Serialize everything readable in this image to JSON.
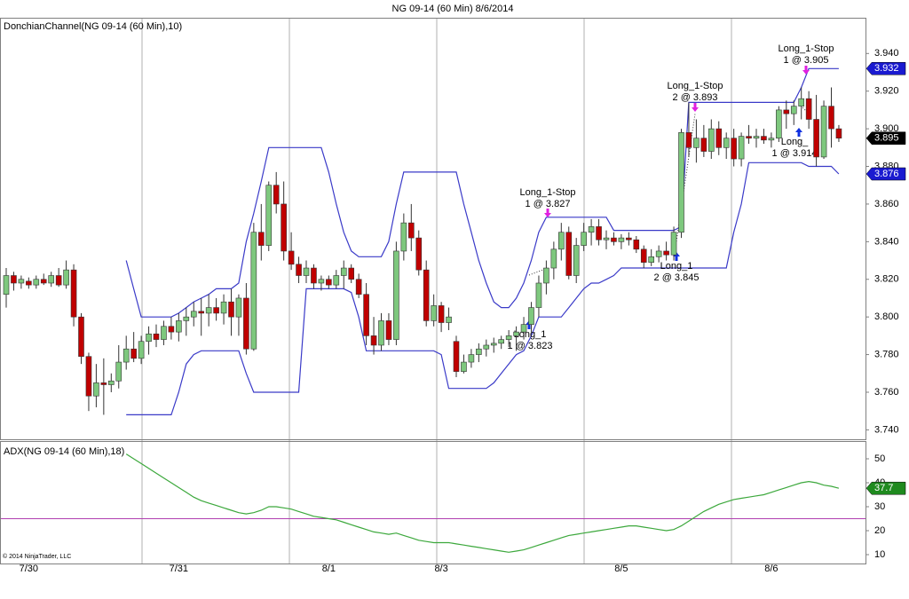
{
  "copyright": "© 2014 NinjaTrader, LLC",
  "chart_data": [
    {
      "type": "candlestick",
      "title": "NG 09-14 (60 Min)  8/6/2014",
      "subtitle": "DonchianChannel(NG 09-14 (60 Min),10)",
      "categories": [
        null,
        null,
        null,
        "7/30",
        null,
        null,
        null,
        null,
        null,
        null,
        null,
        null,
        null,
        null,
        null,
        null,
        null,
        null,
        null,
        null,
        null,
        null,
        null,
        "7/31",
        null,
        null,
        null,
        null,
        null,
        null,
        null,
        null,
        null,
        null,
        null,
        null,
        null,
        null,
        null,
        null,
        null,
        null,
        null,
        "8/1",
        null,
        null,
        null,
        null,
        null,
        null,
        null,
        null,
        null,
        null,
        null,
        null,
        null,
        null,
        "8/3",
        null,
        null,
        null,
        null,
        null,
        null,
        null,
        null,
        null,
        null,
        null,
        null,
        null,
        null,
        null,
        null,
        null,
        null,
        null,
        null,
        null,
        null,
        null,
        "8/5",
        null,
        null,
        null,
        null,
        null,
        null,
        null,
        null,
        null,
        null,
        null,
        null,
        null,
        null,
        null,
        null,
        null,
        null,
        null,
        "8/6",
        null,
        null,
        null,
        null,
        null,
        null,
        null,
        null,
        null
      ],
      "ohlc": [
        [
          3.812,
          3.826,
          3.805,
          3.822
        ],
        [
          3.822,
          3.824,
          3.814,
          3.818
        ],
        [
          3.818,
          3.822,
          3.815,
          3.82
        ],
        [
          3.819,
          3.821,
          3.815,
          3.817
        ],
        [
          3.817,
          3.822,
          3.815,
          3.82
        ],
        [
          3.82,
          3.823,
          3.817,
          3.818
        ],
        [
          3.818,
          3.824,
          3.816,
          3.822
        ],
        [
          3.822,
          3.826,
          3.816,
          3.817
        ],
        [
          3.817,
          3.83,
          3.815,
          3.825
        ],
        [
          3.825,
          3.828,
          3.795,
          3.8
        ],
        [
          3.8,
          3.802,
          3.775,
          3.779
        ],
        [
          3.779,
          3.781,
          3.75,
          3.758
        ],
        [
          3.758,
          3.775,
          3.752,
          3.765
        ],
        [
          3.765,
          3.778,
          3.748,
          3.764
        ],
        [
          3.764,
          3.77,
          3.76,
          3.766
        ],
        [
          3.766,
          3.785,
          3.762,
          3.776
        ],
        [
          3.776,
          3.79,
          3.772,
          3.783
        ],
        [
          3.783,
          3.792,
          3.776,
          3.778
        ],
        [
          3.778,
          3.79,
          3.775,
          3.787
        ],
        [
          3.787,
          3.795,
          3.78,
          3.791
        ],
        [
          3.791,
          3.796,
          3.784,
          3.788
        ],
        [
          3.788,
          3.798,
          3.785,
          3.795
        ],
        [
          3.795,
          3.8,
          3.788,
          3.792
        ],
        [
          3.792,
          3.802,
          3.787,
          3.798
        ],
        [
          3.798,
          3.805,
          3.79,
          3.8
        ],
        [
          3.8,
          3.808,
          3.795,
          3.803
        ],
        [
          3.803,
          3.81,
          3.79,
          3.802
        ],
        [
          3.802,
          3.812,
          3.795,
          3.805
        ],
        [
          3.805,
          3.81,
          3.798,
          3.802
        ],
        [
          3.802,
          3.812,
          3.796,
          3.808
        ],
        [
          3.808,
          3.815,
          3.79,
          3.8
        ],
        [
          3.8,
          3.812,
          3.79,
          3.81
        ],
        [
          3.81,
          3.818,
          3.78,
          3.783
        ],
        [
          3.783,
          3.85,
          3.782,
          3.845
        ],
        [
          3.845,
          3.86,
          3.83,
          3.838
        ],
        [
          3.838,
          3.872,
          3.835,
          3.87
        ],
        [
          3.87,
          3.877,
          3.855,
          3.86
        ],
        [
          3.86,
          3.872,
          3.83,
          3.835
        ],
        [
          3.835,
          3.845,
          3.825,
          3.828
        ],
        [
          3.828,
          3.832,
          3.818,
          3.822
        ],
        [
          3.822,
          3.83,
          3.818,
          3.826
        ],
        [
          3.826,
          3.828,
          3.815,
          3.818
        ],
        [
          3.818,
          3.822,
          3.814,
          3.82
        ],
        [
          3.82,
          3.822,
          3.815,
          3.817
        ],
        [
          3.817,
          3.825,
          3.815,
          3.822
        ],
        [
          3.822,
          3.83,
          3.815,
          3.826
        ],
        [
          3.826,
          3.828,
          3.818,
          3.82
        ],
        [
          3.82,
          3.823,
          3.81,
          3.812
        ],
        [
          3.812,
          3.818,
          3.785,
          3.79
        ],
        [
          3.79,
          3.8,
          3.78,
          3.785
        ],
        [
          3.785,
          3.802,
          3.782,
          3.798
        ],
        [
          3.798,
          3.802,
          3.785,
          3.788
        ],
        [
          3.788,
          3.84,
          3.785,
          3.835
        ],
        [
          3.835,
          3.855,
          3.83,
          3.85
        ],
        [
          3.85,
          3.86,
          3.835,
          3.842
        ],
        [
          3.842,
          3.846,
          3.822,
          3.825
        ],
        [
          3.825,
          3.83,
          3.795,
          3.798
        ],
        [
          3.798,
          3.812,
          3.795,
          3.806
        ],
        [
          3.806,
          3.808,
          3.792,
          3.797
        ],
        [
          3.797,
          3.805,
          3.793,
          3.8
        ],
        [
          3.787,
          3.79,
          3.768,
          3.771
        ],
        [
          3.771,
          3.78,
          3.77,
          3.776
        ],
        [
          3.776,
          3.783,
          3.773,
          3.78
        ],
        [
          3.78,
          3.786,
          3.776,
          3.783
        ],
        [
          3.783,
          3.788,
          3.779,
          3.785
        ],
        [
          3.785,
          3.789,
          3.781,
          3.786
        ],
        [
          3.786,
          3.79,
          3.783,
          3.788
        ],
        [
          3.788,
          3.793,
          3.784,
          3.79
        ],
        [
          3.79,
          3.795,
          3.782,
          3.792
        ],
        [
          3.792,
          3.8,
          3.788,
          3.796
        ],
        [
          3.796,
          3.808,
          3.792,
          3.805
        ],
        [
          3.805,
          3.822,
          3.8,
          3.818
        ],
        [
          3.818,
          3.83,
          3.812,
          3.826
        ],
        [
          3.826,
          3.84,
          3.82,
          3.836
        ],
        [
          3.836,
          3.85,
          3.83,
          3.845
        ],
        [
          3.845,
          3.848,
          3.82,
          3.822
        ],
        [
          3.822,
          3.842,
          3.818,
          3.838
        ],
        [
          3.838,
          3.85,
          3.835,
          3.845
        ],
        [
          3.845,
          3.852,
          3.838,
          3.848
        ],
        [
          3.848,
          3.852,
          3.838,
          3.841
        ],
        [
          3.841,
          3.846,
          3.836,
          3.842
        ],
        [
          3.842,
          3.845,
          3.838,
          3.84
        ],
        [
          3.84,
          3.844,
          3.836,
          3.842
        ],
        [
          3.842,
          3.845,
          3.838,
          3.841
        ],
        [
          3.841,
          3.843,
          3.834,
          3.836
        ],
        [
          3.836,
          3.838,
          3.826,
          3.829
        ],
        [
          3.829,
          3.836,
          3.827,
          3.832
        ],
        [
          3.832,
          3.838,
          3.829,
          3.835
        ],
        [
          3.835,
          3.84,
          3.83,
          3.833
        ],
        [
          3.833,
          3.848,
          3.83,
          3.845
        ],
        [
          3.845,
          3.9,
          3.842,
          3.898
        ],
        [
          3.898,
          3.914,
          3.885,
          3.89
        ],
        [
          3.89,
          3.905,
          3.882,
          3.895
        ],
        [
          3.895,
          3.902,
          3.885,
          3.888
        ],
        [
          3.888,
          3.905,
          3.884,
          3.9
        ],
        [
          3.9,
          3.904,
          3.886,
          3.89
        ],
        [
          3.89,
          3.898,
          3.884,
          3.895
        ],
        [
          3.895,
          3.9,
          3.88,
          3.884
        ],
        [
          3.884,
          3.898,
          3.88,
          3.896
        ],
        [
          3.896,
          3.902,
          3.892,
          3.895
        ],
        [
          3.895,
          3.9,
          3.89,
          3.896
        ],
        [
          3.896,
          3.9,
          3.892,
          3.894
        ],
        [
          3.894,
          3.898,
          3.89,
          3.895
        ],
        [
          3.895,
          3.912,
          3.893,
          3.91
        ],
        [
          3.91,
          3.915,
          3.9,
          3.908
        ],
        [
          3.908,
          3.915,
          3.902,
          3.912
        ],
        [
          3.912,
          3.922,
          3.905,
          3.916
        ],
        [
          3.916,
          3.92,
          3.9,
          3.905
        ],
        [
          3.905,
          3.918,
          3.88,
          3.885
        ],
        [
          3.885,
          3.915,
          3.884,
          3.912
        ],
        [
          3.912,
          3.922,
          3.89,
          3.9
        ],
        [
          3.9,
          3.902,
          3.893,
          3.895
        ]
      ],
      "up_color": "#7ec87e",
      "down_color": "#c00000",
      "outline_color": "#333333",
      "series": [
        {
          "color": "#3a3ac8",
          "label_color": "#1a1ad0",
          "values": [
            null,
            null,
            null,
            null,
            null,
            null,
            null,
            null,
            null,
            null,
            null,
            null,
            null,
            null,
            null,
            null,
            3.83,
            3.815,
            3.8,
            3.8,
            3.8,
            3.8,
            3.8,
            3.802,
            3.805,
            3.808,
            3.81,
            3.812,
            3.815,
            3.815,
            3.815,
            3.818,
            3.84,
            3.855,
            3.872,
            3.89,
            3.89,
            3.89,
            3.89,
            3.89,
            3.89,
            3.89,
            3.89,
            3.877,
            3.86,
            3.845,
            3.835,
            3.832,
            3.832,
            3.832,
            3.832,
            3.84,
            3.86,
            3.877,
            3.877,
            3.877,
            3.877,
            3.877,
            3.877,
            3.877,
            3.877,
            3.86,
            3.845,
            3.83,
            3.818,
            3.808,
            3.805,
            3.805,
            3.81,
            3.818,
            3.83,
            3.845,
            3.853,
            3.853,
            3.853,
            3.853,
            3.853,
            3.853,
            3.853,
            3.853,
            3.853,
            3.846,
            3.846,
            3.846,
            3.846,
            3.846,
            3.846,
            3.846,
            3.846,
            3.846,
            3.848,
            3.914,
            3.914,
            3.914,
            3.914,
            3.914,
            3.914,
            3.914,
            3.914,
            3.914,
            3.914,
            3.914,
            3.914,
            3.914,
            3.914,
            3.914,
            3.922,
            3.932,
            3.932,
            3.932,
            3.932,
            3.932
          ]
        },
        {
          "color": "#3a3ac8",
          "label_color": "#1a1ad0",
          "values": [
            null,
            null,
            null,
            null,
            null,
            null,
            null,
            null,
            null,
            null,
            null,
            null,
            null,
            null,
            null,
            null,
            3.748,
            3.748,
            3.748,
            3.748,
            3.748,
            3.748,
            3.748,
            3.76,
            3.775,
            3.78,
            3.782,
            3.782,
            3.782,
            3.782,
            3.782,
            3.782,
            3.77,
            3.76,
            3.76,
            3.76,
            3.76,
            3.76,
            3.76,
            3.76,
            3.815,
            3.815,
            3.815,
            3.815,
            3.815,
            3.815,
            3.813,
            3.8,
            3.782,
            3.782,
            3.782,
            3.782,
            3.782,
            3.782,
            3.782,
            3.782,
            3.782,
            3.782,
            3.78,
            3.762,
            3.762,
            3.762,
            3.762,
            3.762,
            3.762,
            3.765,
            3.77,
            3.775,
            3.78,
            3.782,
            3.79,
            3.8,
            3.8,
            3.8,
            3.8,
            3.805,
            3.81,
            3.815,
            3.818,
            3.818,
            3.82,
            3.822,
            3.826,
            3.826,
            3.826,
            3.826,
            3.826,
            3.826,
            3.826,
            3.826,
            3.826,
            3.826,
            3.826,
            3.826,
            3.826,
            3.826,
            3.826,
            3.845,
            3.86,
            3.882,
            3.882,
            3.882,
            3.882,
            3.882,
            3.882,
            3.882,
            3.882,
            3.88,
            3.88,
            3.88,
            3.88,
            3.876
          ]
        }
      ],
      "close_label_color": "#000000",
      "annotations": [
        {
          "text": "Long_1-Stop",
          "detail": "1 @ 3.827"
        },
        {
          "text": "Long_1",
          "detail": "1 @ 3.823"
        },
        {
          "text": "Long_1-Stop",
          "detail": "2 @ 3.893"
        },
        {
          "text": "Long_1",
          "detail": "2 @ 3.845"
        },
        {
          "text": "Long_1-Stop",
          "detail": "1 @ 3.905"
        },
        {
          "text": "Long_",
          "detail": "1 @ 3.914"
        }
      ],
      "ylim": [
        3.735,
        3.959
      ],
      "yticks": [
        {
          "value": 3.74,
          "label": "3.740"
        },
        {
          "value": 3.76,
          "label": "3.760"
        },
        {
          "value": 3.78,
          "label": "3.780"
        },
        {
          "value": 3.8,
          "label": "3.800"
        },
        {
          "value": 3.82,
          "label": "3.820"
        },
        {
          "value": 3.84,
          "label": "3.840"
        },
        {
          "value": 3.86,
          "label": "3.860"
        },
        {
          "value": 3.88,
          "label": "3.880"
        },
        {
          "value": 3.9,
          "label": "3.900"
        },
        {
          "value": 3.92,
          "label": "3.920"
        },
        {
          "value": 3.94,
          "label": "3.940"
        }
      ]
    },
    {
      "type": "line",
      "title": "ADX(NG 09-14 (60 Min),18)",
      "series": [
        {
          "color": "#3ca83c",
          "label_color": "#1f8a1f",
          "values": [
            null,
            null,
            null,
            null,
            null,
            null,
            null,
            null,
            null,
            null,
            null,
            null,
            null,
            null,
            null,
            null,
            52,
            50,
            48,
            46,
            44,
            42,
            40,
            38,
            36,
            34,
            32.5,
            31.5,
            30.5,
            29.5,
            28.5,
            27.5,
            27,
            27.5,
            28.5,
            30,
            30,
            29.5,
            29,
            28,
            27,
            26,
            25.5,
            25,
            24.5,
            23.5,
            22.5,
            21.5,
            20.5,
            19.5,
            19,
            18.5,
            19,
            18,
            17,
            16,
            15.5,
            15,
            15,
            15,
            14.5,
            14,
            13.5,
            13,
            12.5,
            12,
            11.5,
            11,
            11.5,
            12,
            13,
            14,
            15,
            16,
            17,
            18,
            18.5,
            19,
            19.5,
            20,
            20.5,
            21,
            21.5,
            22,
            22,
            21.5,
            21,
            20.5,
            20,
            20.5,
            22,
            24,
            26,
            28,
            29.5,
            31,
            32,
            33,
            33.5,
            34,
            34.5,
            35,
            36,
            37,
            38,
            39,
            40,
            40.5,
            40,
            39,
            38.5,
            37.7
          ]
        }
      ],
      "level": 25,
      "level_color": "#b040b0",
      "ylim": [
        6.3,
        57.4
      ],
      "yticks": [
        10,
        20,
        30,
        40,
        50
      ]
    }
  ]
}
